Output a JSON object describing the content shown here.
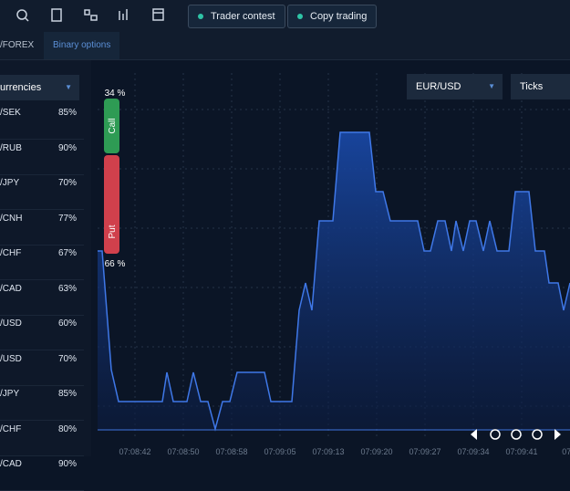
{
  "toolbar": {
    "buttons": [
      "Trader contest",
      "Copy trading"
    ]
  },
  "tabs": [
    "/FOREX",
    "Binary options"
  ],
  "assets": {
    "header": "urrencies",
    "rows": [
      [
        "/SEK",
        "85%"
      ],
      [
        "/RUB",
        "90%"
      ],
      [
        "/JPY",
        "70%"
      ],
      [
        "/CNH",
        "77%"
      ],
      [
        "/CHF",
        "67%"
      ],
      [
        "/CAD",
        "63%"
      ],
      [
        "/USD",
        "60%"
      ],
      [
        "/USD",
        "70%"
      ],
      [
        "/JPY",
        "85%"
      ],
      [
        "/CHF",
        "80%"
      ],
      [
        "/CAD",
        "90%"
      ]
    ]
  },
  "chart": {
    "pair": "EUR/USD",
    "mode": "Ticks",
    "call_pct": "34 %",
    "call": "Call",
    "put": "Put",
    "put_pct": "66 %",
    "x_labels": [
      "07:08:42",
      "07:08:50",
      "07:08:58",
      "07:09:05",
      "07:09:13",
      "07:09:20",
      "07:09:27",
      "07:09:34",
      "07:09:41",
      "07:0"
    ]
  }
}
